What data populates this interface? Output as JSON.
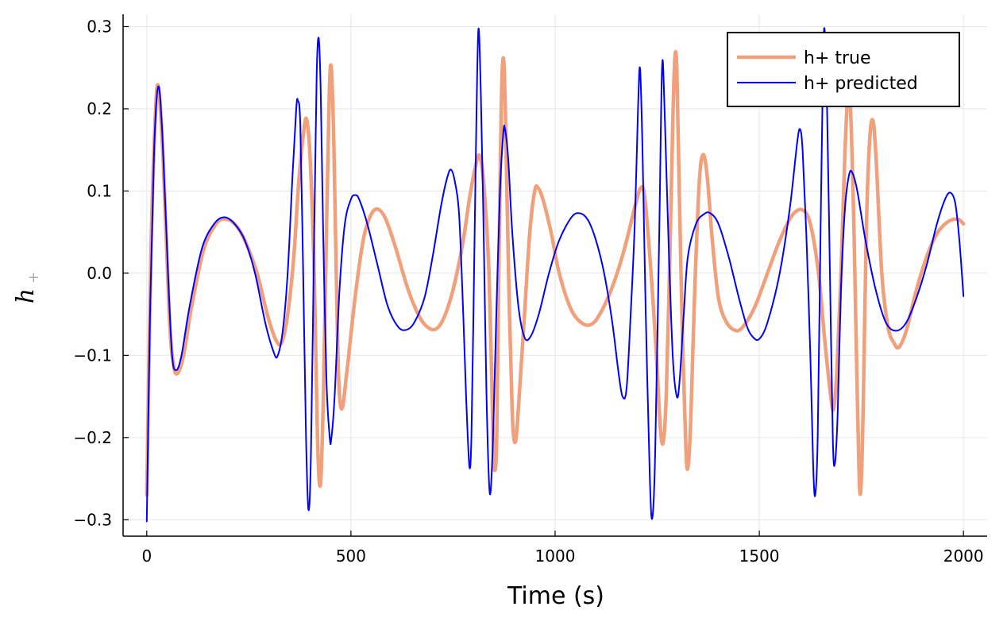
{
  "chart_data": {
    "type": "line",
    "title": "",
    "xlabel": "Time (s)",
    "ylabel": "h",
    "ylabel_subscript": "+",
    "xlim": [
      -58,
      2058
    ],
    "ylim": [
      -0.32,
      0.315
    ],
    "xticks": [
      0,
      500,
      1000,
      1500,
      2000
    ],
    "xtick_labels": [
      "0",
      "500",
      "1000",
      "1500",
      "2000"
    ],
    "yticks": [
      -0.3,
      -0.2,
      -0.1,
      0.0,
      0.1,
      0.2,
      0.3
    ],
    "ytick_labels": [
      "−0.3",
      "−0.2",
      "−0.1",
      "0.0",
      "0.1",
      "0.2",
      "0.3"
    ],
    "grid": true,
    "legend_position": "top-right",
    "series": [
      {
        "name": "h+ true",
        "color": "#f0a07a",
        "width": 4.5,
        "points": [
          [
            0,
            -0.27
          ],
          [
            10,
            0.02
          ],
          [
            20,
            0.18
          ],
          [
            28,
            0.228
          ],
          [
            40,
            0.14
          ],
          [
            55,
            -0.05
          ],
          [
            65,
            -0.11
          ],
          [
            75,
            -0.122
          ],
          [
            90,
            -0.1
          ],
          [
            110,
            -0.04
          ],
          [
            140,
            0.03
          ],
          [
            170,
            0.06
          ],
          [
            190,
            0.066
          ],
          [
            215,
            0.06
          ],
          [
            240,
            0.04
          ],
          [
            270,
            0.0
          ],
          [
            295,
            -0.05
          ],
          [
            315,
            -0.08
          ],
          [
            330,
            -0.085
          ],
          [
            345,
            -0.05
          ],
          [
            360,
            0.02
          ],
          [
            372,
            0.11
          ],
          [
            385,
            0.175
          ],
          [
            392,
            0.186
          ],
          [
            400,
            0.14
          ],
          [
            410,
            0.0
          ],
          [
            418,
            -0.2
          ],
          [
            425,
            -0.258
          ],
          [
            432,
            -0.16
          ],
          [
            440,
            0.05
          ],
          [
            447,
            0.22
          ],
          [
            452,
            0.249
          ],
          [
            458,
            0.16
          ],
          [
            464,
            0.0
          ],
          [
            470,
            -0.13
          ],
          [
            478,
            -0.165
          ],
          [
            490,
            -0.12
          ],
          [
            510,
            -0.03
          ],
          [
            530,
            0.04
          ],
          [
            548,
            0.07
          ],
          [
            565,
            0.078
          ],
          [
            585,
            0.066
          ],
          [
            610,
            0.03
          ],
          [
            640,
            -0.02
          ],
          [
            670,
            -0.055
          ],
          [
            695,
            -0.068
          ],
          [
            715,
            -0.065
          ],
          [
            735,
            -0.045
          ],
          [
            755,
            -0.01
          ],
          [
            775,
            0.04
          ],
          [
            790,
            0.09
          ],
          [
            805,
            0.13
          ],
          [
            815,
            0.143
          ],
          [
            825,
            0.11
          ],
          [
            838,
            0.0
          ],
          [
            848,
            -0.2
          ],
          [
            852,
            -0.24
          ],
          [
            857,
            -0.2
          ],
          [
            862,
            0.0
          ],
          [
            868,
            0.2
          ],
          [
            873,
            0.262
          ],
          [
            878,
            0.2
          ],
          [
            886,
            0.0
          ],
          [
            895,
            -0.17
          ],
          [
            903,
            -0.205
          ],
          [
            912,
            -0.15
          ],
          [
            925,
            -0.05
          ],
          [
            938,
            0.05
          ],
          [
            950,
            0.1
          ],
          [
            958,
            0.104
          ],
          [
            970,
            0.09
          ],
          [
            990,
            0.05
          ],
          [
            1010,
            0.0
          ],
          [
            1040,
            -0.045
          ],
          [
            1070,
            -0.062
          ],
          [
            1095,
            -0.06
          ],
          [
            1120,
            -0.04
          ],
          [
            1145,
            -0.01
          ],
          [
            1170,
            0.03
          ],
          [
            1195,
            0.08
          ],
          [
            1210,
            0.104
          ],
          [
            1220,
            0.09
          ],
          [
            1235,
            0.0
          ],
          [
            1248,
            -0.1
          ],
          [
            1258,
            -0.19
          ],
          [
            1265,
            -0.205
          ],
          [
            1272,
            -0.15
          ],
          [
            1280,
            0.0
          ],
          [
            1288,
            0.18
          ],
          [
            1293,
            0.26
          ],
          [
            1298,
            0.25
          ],
          [
            1304,
            0.1
          ],
          [
            1312,
            -0.08
          ],
          [
            1320,
            -0.21
          ],
          [
            1325,
            -0.237
          ],
          [
            1332,
            -0.18
          ],
          [
            1342,
            -0.02
          ],
          [
            1353,
            0.11
          ],
          [
            1362,
            0.144
          ],
          [
            1372,
            0.12
          ],
          [
            1385,
            0.04
          ],
          [
            1400,
            -0.03
          ],
          [
            1420,
            -0.06
          ],
          [
            1445,
            -0.07
          ],
          [
            1465,
            -0.062
          ],
          [
            1490,
            -0.04
          ],
          [
            1520,
            0.0
          ],
          [
            1550,
            0.04
          ],
          [
            1580,
            0.07
          ],
          [
            1605,
            0.077
          ],
          [
            1625,
            0.06
          ],
          [
            1645,
            0.0
          ],
          [
            1660,
            -0.08
          ],
          [
            1675,
            -0.15
          ],
          [
            1682,
            -0.165
          ],
          [
            1690,
            -0.12
          ],
          [
            1700,
            0.0
          ],
          [
            1710,
            0.15
          ],
          [
            1718,
            0.222
          ],
          [
            1725,
            0.18
          ],
          [
            1732,
            0.05
          ],
          [
            1738,
            -0.1
          ],
          [
            1745,
            -0.255
          ],
          [
            1750,
            -0.25
          ],
          [
            1755,
            -0.15
          ],
          [
            1762,
            0.05
          ],
          [
            1770,
            0.16
          ],
          [
            1778,
            0.186
          ],
          [
            1786,
            0.14
          ],
          [
            1800,
            0.0
          ],
          [
            1815,
            -0.065
          ],
          [
            1830,
            -0.085
          ],
          [
            1842,
            -0.09
          ],
          [
            1860,
            -0.07
          ],
          [
            1885,
            -0.02
          ],
          [
            1910,
            0.02
          ],
          [
            1935,
            0.048
          ],
          [
            1960,
            0.062
          ],
          [
            1985,
            0.066
          ],
          [
            2000,
            0.06
          ]
        ]
      },
      {
        "name": "h+ predicted",
        "color": "#0000ff",
        "width": 2,
        "points": [
          [
            0,
            -0.302
          ],
          [
            8,
            -0.05
          ],
          [
            18,
            0.15
          ],
          [
            28,
            0.227
          ],
          [
            38,
            0.17
          ],
          [
            52,
            0.0
          ],
          [
            62,
            -0.1
          ],
          [
            72,
            -0.118
          ],
          [
            85,
            -0.1
          ],
          [
            105,
            -0.04
          ],
          [
            135,
            0.03
          ],
          [
            165,
            0.06
          ],
          [
            190,
            0.068
          ],
          [
            215,
            0.06
          ],
          [
            240,
            0.04
          ],
          [
            265,
            0.0
          ],
          [
            290,
            -0.06
          ],
          [
            310,
            -0.095
          ],
          [
            320,
            -0.101
          ],
          [
            333,
            -0.07
          ],
          [
            345,
            0.0
          ],
          [
            357,
            0.12
          ],
          [
            366,
            0.2
          ],
          [
            370,
            0.21
          ],
          [
            376,
            0.18
          ],
          [
            383,
            0.0
          ],
          [
            390,
            -0.2
          ],
          [
            396,
            -0.288
          ],
          [
            402,
            -0.22
          ],
          [
            410,
            0.05
          ],
          [
            416,
            0.24
          ],
          [
            421,
            0.286
          ],
          [
            426,
            0.22
          ],
          [
            432,
            0.05
          ],
          [
            440,
            -0.13
          ],
          [
            448,
            -0.2
          ],
          [
            452,
            -0.201
          ],
          [
            460,
            -0.15
          ],
          [
            472,
            -0.02
          ],
          [
            485,
            0.06
          ],
          [
            500,
            0.09
          ],
          [
            510,
            0.095
          ],
          [
            520,
            0.09
          ],
          [
            540,
            0.06
          ],
          [
            565,
            0.01
          ],
          [
            590,
            -0.04
          ],
          [
            615,
            -0.065
          ],
          [
            635,
            -0.069
          ],
          [
            655,
            -0.06
          ],
          [
            680,
            -0.03
          ],
          [
            700,
            0.02
          ],
          [
            720,
            0.08
          ],
          [
            735,
            0.115
          ],
          [
            745,
            0.126
          ],
          [
            755,
            0.11
          ],
          [
            765,
            0.07
          ],
          [
            775,
            -0.05
          ],
          [
            782,
            -0.15
          ],
          [
            790,
            -0.235
          ],
          [
            795,
            -0.2
          ],
          [
            800,
            -0.05
          ],
          [
            806,
            0.15
          ],
          [
            812,
            0.296
          ],
          [
            818,
            0.22
          ],
          [
            825,
            0.05
          ],
          [
            832,
            -0.15
          ],
          [
            840,
            -0.268
          ],
          [
            848,
            -0.2
          ],
          [
            856,
            -0.05
          ],
          [
            865,
            0.1
          ],
          [
            873,
            0.17
          ],
          [
            877,
            0.176
          ],
          [
            885,
            0.14
          ],
          [
            895,
            0.05
          ],
          [
            910,
            -0.04
          ],
          [
            925,
            -0.078
          ],
          [
            940,
            -0.077
          ],
          [
            960,
            -0.05
          ],
          [
            985,
            0.0
          ],
          [
            1010,
            0.04
          ],
          [
            1040,
            0.068
          ],
          [
            1060,
            0.073
          ],
          [
            1080,
            0.065
          ],
          [
            1100,
            0.04
          ],
          [
            1120,
            0.0
          ],
          [
            1140,
            -0.06
          ],
          [
            1155,
            -0.12
          ],
          [
            1165,
            -0.15
          ],
          [
            1175,
            -0.14
          ],
          [
            1185,
            -0.05
          ],
          [
            1195,
            0.06
          ],
          [
            1203,
            0.2
          ],
          [
            1208,
            0.249
          ],
          [
            1214,
            0.15
          ],
          [
            1222,
            -0.05
          ],
          [
            1232,
            -0.25
          ],
          [
            1238,
            -0.298
          ],
          [
            1245,
            -0.22
          ],
          [
            1255,
            0.05
          ],
          [
            1262,
            0.252
          ],
          [
            1268,
            0.2
          ],
          [
            1277,
            0.05
          ],
          [
            1288,
            -0.1
          ],
          [
            1298,
            -0.15
          ],
          [
            1305,
            -0.13
          ],
          [
            1315,
            -0.05
          ],
          [
            1325,
            0.02
          ],
          [
            1345,
            0.06
          ],
          [
            1365,
            0.072
          ],
          [
            1380,
            0.073
          ],
          [
            1400,
            0.06
          ],
          [
            1425,
            0.02
          ],
          [
            1450,
            -0.03
          ],
          [
            1470,
            -0.065
          ],
          [
            1485,
            -0.078
          ],
          [
            1500,
            -0.08
          ],
          [
            1520,
            -0.06
          ],
          [
            1550,
            0.0
          ],
          [
            1575,
            0.08
          ],
          [
            1593,
            0.16
          ],
          [
            1600,
            0.175
          ],
          [
            1606,
            0.15
          ],
          [
            1615,
            0.05
          ],
          [
            1625,
            -0.1
          ],
          [
            1632,
            -0.235
          ],
          [
            1637,
            -0.27
          ],
          [
            1643,
            -0.2
          ],
          [
            1650,
            0.05
          ],
          [
            1656,
            0.25
          ],
          [
            1660,
            0.296
          ],
          [
            1666,
            0.2
          ],
          [
            1673,
            0.0
          ],
          [
            1680,
            -0.2
          ],
          [
            1685,
            -0.232
          ],
          [
            1692,
            -0.17
          ],
          [
            1700,
            -0.02
          ],
          [
            1710,
            0.08
          ],
          [
            1720,
            0.12
          ],
          [
            1728,
            0.122
          ],
          [
            1740,
            0.1
          ],
          [
            1760,
            0.04
          ],
          [
            1785,
            -0.02
          ],
          [
            1810,
            -0.06
          ],
          [
            1835,
            -0.07
          ],
          [
            1860,
            -0.06
          ],
          [
            1885,
            -0.03
          ],
          [
            1910,
            0.01
          ],
          [
            1935,
            0.06
          ],
          [
            1955,
            0.09
          ],
          [
            1968,
            0.098
          ],
          [
            1980,
            0.085
          ],
          [
            1990,
            0.04
          ],
          [
            2000,
            -0.028
          ]
        ]
      }
    ]
  }
}
